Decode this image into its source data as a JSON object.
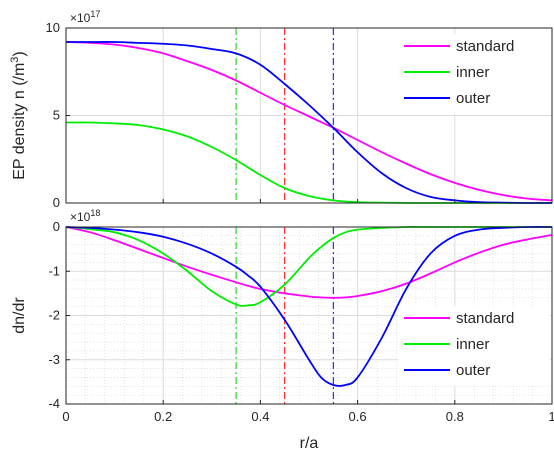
{
  "chart_data": [
    {
      "type": "line",
      "ylabel": "EP density n (/m",
      "ylabel_sup": "3",
      "ylabel_tail": ")",
      "y_multiplier": "×10",
      "y_multiplier_exp": "17",
      "ylim": [
        0,
        10
      ],
      "yticks": [
        "0",
        "5",
        "10"
      ],
      "xlim": [
        0,
        1
      ],
      "grid": true,
      "legend_position": "top-right",
      "x": [
        0,
        0.05,
        0.1,
        0.15,
        0.2,
        0.25,
        0.3,
        0.35,
        0.4,
        0.45,
        0.5,
        0.55,
        0.6,
        0.65,
        0.7,
        0.75,
        0.8,
        0.85,
        0.9,
        0.95,
        1.0
      ],
      "series": [
        {
          "name": "standard",
          "color": "#ff00ff",
          "values": [
            9.2,
            9.15,
            9.05,
            8.85,
            8.55,
            8.1,
            7.6,
            7.0,
            6.3,
            5.6,
            4.95,
            4.3,
            3.6,
            2.9,
            2.25,
            1.65,
            1.15,
            0.75,
            0.45,
            0.25,
            0.15
          ]
        },
        {
          "name": "inner",
          "color": "#00ee00",
          "values": [
            4.6,
            4.6,
            4.55,
            4.45,
            4.2,
            3.8,
            3.2,
            2.45,
            1.6,
            0.85,
            0.4,
            0.15,
            0.05,
            0.02,
            0,
            0,
            0,
            0,
            0,
            0,
            0
          ]
        },
        {
          "name": "outer",
          "color": "#0000ff",
          "values": [
            9.2,
            9.2,
            9.2,
            9.15,
            9.1,
            9.0,
            8.8,
            8.55,
            7.9,
            6.8,
            5.6,
            4.3,
            2.9,
            1.7,
            0.85,
            0.35,
            0.15,
            0.05,
            0.02,
            0,
            0
          ]
        }
      ],
      "vlines": [
        {
          "x": 0.35,
          "color": "#00cc00"
        },
        {
          "x": 0.45,
          "color": "#ff0000"
        },
        {
          "x": 0.55,
          "color": "#0000ff"
        }
      ]
    },
    {
      "type": "line",
      "ylabel": "dn/dr",
      "xlabel": "r/a",
      "y_multiplier": "×10",
      "y_multiplier_exp": "18",
      "ylim": [
        -4,
        0
      ],
      "yticks": [
        "0",
        "-1",
        "-2",
        "-3",
        "-4"
      ],
      "xlim": [
        0,
        1
      ],
      "xticks": [
        "0",
        "0.2",
        "0.4",
        "0.6",
        "0.8",
        "1"
      ],
      "grid": true,
      "minor_grid": true,
      "legend_position": "bottom-right",
      "x": [
        0,
        0.05,
        0.1,
        0.15,
        0.2,
        0.25,
        0.3,
        0.35,
        0.375,
        0.4,
        0.45,
        0.5,
        0.525,
        0.55,
        0.575,
        0.6,
        0.65,
        0.7,
        0.75,
        0.8,
        0.85,
        0.9,
        0.95,
        1.0
      ],
      "series": [
        {
          "name": "standard",
          "color": "#ff00ff",
          "values": [
            0,
            -0.12,
            -0.3,
            -0.5,
            -0.7,
            -0.9,
            -1.08,
            -1.25,
            -1.33,
            -1.4,
            -1.5,
            -1.57,
            -1.59,
            -1.6,
            -1.59,
            -1.56,
            -1.45,
            -1.28,
            -1.05,
            -0.8,
            -0.58,
            -0.4,
            -0.28,
            -0.18
          ]
        },
        {
          "name": "inner",
          "color": "#00ee00",
          "values": [
            0,
            -0.05,
            -0.12,
            -0.3,
            -0.6,
            -1.0,
            -1.45,
            -1.75,
            -1.77,
            -1.7,
            -1.3,
            -0.7,
            -0.45,
            -0.25,
            -0.12,
            -0.06,
            -0.02,
            0,
            0,
            0,
            0,
            0,
            0,
            0
          ]
        },
        {
          "name": "outer",
          "color": "#0000ff",
          "values": [
            0,
            -0.02,
            -0.06,
            -0.12,
            -0.22,
            -0.38,
            -0.6,
            -0.9,
            -1.1,
            -1.35,
            -2.1,
            -3.0,
            -3.4,
            -3.57,
            -3.57,
            -3.4,
            -2.5,
            -1.4,
            -0.6,
            -0.2,
            -0.06,
            -0.02,
            0,
            0
          ]
        }
      ],
      "vlines": [
        {
          "x": 0.35,
          "color": "#00cc00"
        },
        {
          "x": 0.45,
          "color": "#ff0000"
        },
        {
          "x": 0.55,
          "color": "#0000ff"
        }
      ]
    }
  ],
  "top_xticks": [
    "",
    "",
    "",
    "",
    "",
    ""
  ]
}
